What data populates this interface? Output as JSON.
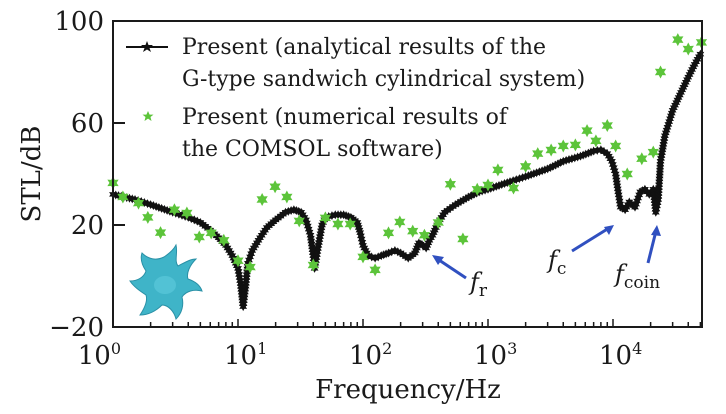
{
  "chart_data": {
    "type": "line",
    "title": "",
    "xlabel": "Frequency/Hz",
    "ylabel": "STL/dB",
    "xscale": "log",
    "xlim": [
      1,
      51000
    ],
    "ylim": [
      -20,
      100
    ],
    "xticks": [
      1,
      10,
      100,
      1000,
      10000
    ],
    "xtick_labels": [
      {
        "base": "10",
        "exp": "0"
      },
      {
        "base": "10",
        "exp": "1"
      },
      {
        "base": "10",
        "exp": "2"
      },
      {
        "base": "10",
        "exp": "3"
      },
      {
        "base": "10",
        "exp": "4"
      }
    ],
    "yticks": [
      -20,
      20,
      60,
      100
    ],
    "ytick_labels": [
      "−20",
      "20",
      "60",
      "100"
    ],
    "grid": false,
    "legend_position": "top-left",
    "series": [
      {
        "name": "Present (analytical results of the G-type sandwich cylindrical system)",
        "legend_lines": [
          "Present (analytical results of the",
          "G-type sandwich cylindrical system)"
        ],
        "style": "line-with-star-markers",
        "color": "#111111",
        "x": [
          1,
          1.5,
          2,
          3,
          4,
          5,
          6,
          7,
          8,
          9,
          10,
          10.5,
          11,
          11.5,
          12,
          13,
          15,
          17,
          20,
          24,
          28,
          32,
          35,
          38,
          40,
          41,
          42,
          44,
          47,
          50,
          60,
          70,
          80,
          90,
          95,
          100,
          110,
          125,
          140,
          160,
          180,
          200,
          230,
          260,
          280,
          300,
          320,
          340,
          360,
          400,
          450,
          550,
          700,
          850,
          1000,
          1500,
          2000,
          3000,
          4000,
          5500,
          7000,
          8000,
          9000,
          9800,
          10500,
          11000,
          11500,
          12500,
          13500,
          15000,
          16500,
          18000,
          19500,
          21000,
          22000,
          23000,
          24000,
          26000,
          30000,
          35000,
          40000,
          45000,
          50000
        ],
        "y": [
          32,
          30,
          28,
          25,
          23,
          21,
          18,
          15,
          12,
          8,
          3,
          -3,
          -12,
          -4,
          5,
          10,
          15,
          19,
          22,
          25,
          26,
          25,
          22,
          16,
          8,
          3,
          6,
          12,
          20,
          23,
          24,
          24,
          23,
          21,
          17,
          12,
          8,
          7,
          8,
          9,
          10,
          9,
          7,
          9,
          13,
          12,
          11,
          14,
          16,
          21,
          25,
          28,
          31,
          33,
          34,
          37,
          39,
          42,
          45,
          47,
          49,
          49.5,
          48,
          45,
          40,
          33,
          27,
          26,
          29,
          27,
          33,
          34,
          32,
          34,
          25,
          30,
          45,
          55,
          65,
          72,
          78,
          83,
          87
        ]
      },
      {
        "name": "Present (numerical results of the COMSOL software)",
        "legend_lines": [
          "Present (numerical results of",
          "the COMSOL software)"
        ],
        "style": "star-markers",
        "color": "#5cc43a",
        "x": [
          1.0,
          1.2,
          1.6,
          1.9,
          2.4,
          3.1,
          3.9,
          4.9,
          6.1,
          7.7,
          10,
          12.5,
          15.6,
          19.8,
          24.6,
          30.9,
          40,
          50,
          63,
          79,
          100,
          125,
          160,
          197,
          250,
          310,
          400,
          500,
          630,
          820,
          1000,
          1200,
          1600,
          2000,
          2500,
          3200,
          4000,
          5000,
          6200,
          7300,
          9000,
          10500,
          13000,
          17000,
          21000,
          24000,
          33000,
          40000,
          51000
        ],
        "y": [
          36.5,
          31,
          28.6,
          23,
          17,
          26,
          24.7,
          15.3,
          16.9,
          14,
          6,
          3.5,
          30,
          35,
          31,
          21.6,
          4.3,
          22.8,
          20.4,
          20.4,
          7.5,
          2.4,
          16.9,
          21.2,
          17.6,
          16,
          21,
          36,
          14.5,
          34,
          35.7,
          41.6,
          34.5,
          43,
          48,
          49.4,
          51,
          51.4,
          57,
          53,
          59,
          51,
          40,
          46,
          48.6,
          80,
          92.7,
          89,
          91.6
        ]
      }
    ],
    "annotations": [
      {
        "name": "fr",
        "main": "f",
        "sub": "r",
        "points_to": {
          "x": 340,
          "y": 11
        }
      },
      {
        "name": "fc",
        "main": "f",
        "sub": "c",
        "points_to": {
          "x": 11500,
          "y": 22
        }
      },
      {
        "name": "fcoin",
        "main": "f",
        "sub": "coin",
        "points_to": {
          "x": 22000,
          "y": 24
        }
      }
    ],
    "inset_image": "G-type gyroid unit cell (cyan)",
    "colors": {
      "arrow": "#3050c0",
      "inset": "#3fb4c8",
      "axis": "#1a1a1a"
    }
  }
}
